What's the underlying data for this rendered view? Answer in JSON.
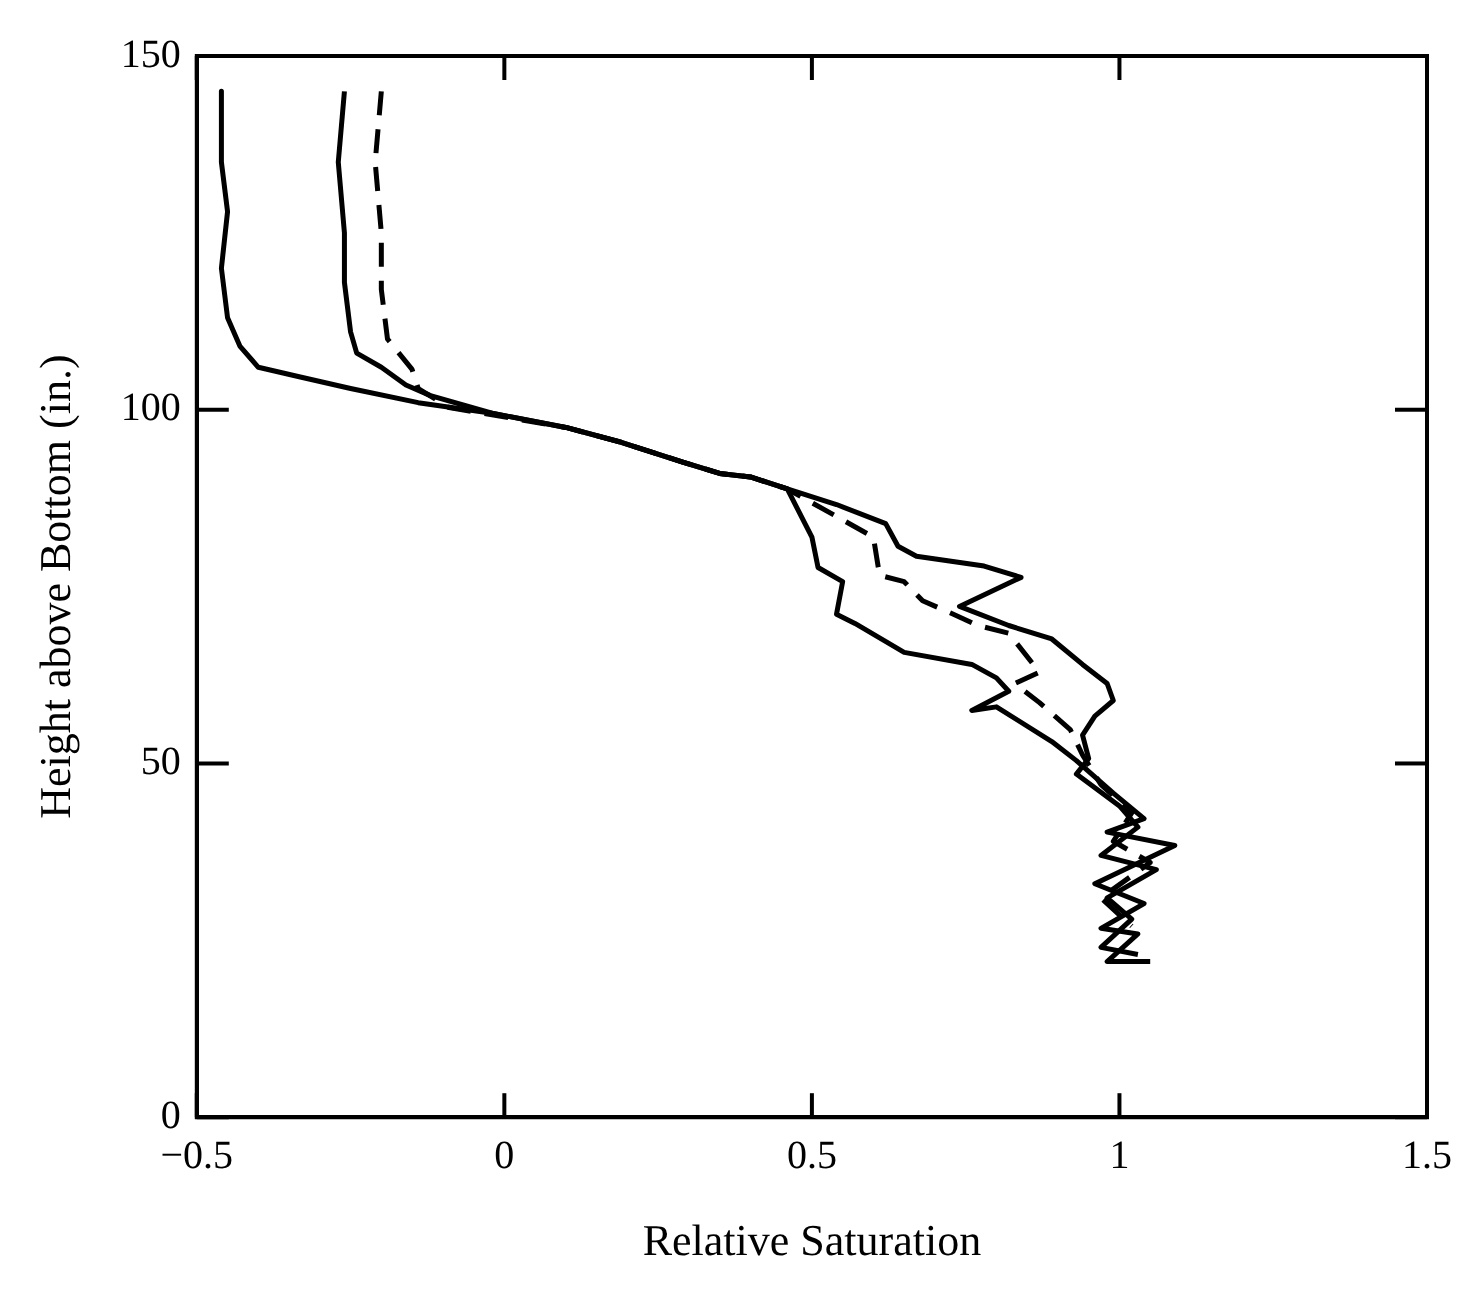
{
  "chart_data": {
    "type": "line",
    "xlabel": "Relative Saturation",
    "ylabel": "Height above Bottom (in.)",
    "xlim": [
      -0.5,
      1.5
    ],
    "xticks": [
      -0.5,
      0,
      0.5,
      1,
      1.5
    ],
    "ylim": [
      0,
      150
    ],
    "yticks": [
      0,
      50,
      100,
      150
    ],
    "legend": false,
    "marker": "none",
    "series": [
      {
        "color": "#000000",
        "line_style": "solid",
        "x": [
          -0.46,
          -0.46,
          -0.45,
          -0.46,
          -0.45,
          -0.43,
          -0.4,
          -0.33,
          -0.25,
          -0.14,
          -0.02,
          0.1,
          0.19,
          0.29,
          0.35,
          0.4,
          0.46,
          0.5,
          0.51,
          0.55,
          0.54,
          0.57,
          0.65,
          0.76,
          0.8,
          0.82,
          0.76,
          0.8,
          0.89,
          0.93,
          0.99,
          1.04,
          0.98,
          1.09,
          0.96,
          1.04,
          0.97,
          1.03,
          0.98,
          1.05
        ],
        "values": [
          145,
          135,
          128,
          120,
          113,
          109,
          106,
          104.6,
          103,
          101,
          99.5,
          97.5,
          95.4,
          92.6,
          91,
          90.5,
          88.8,
          82,
          77.7,
          75.7,
          71.1,
          69.8,
          65.7,
          64,
          62.1,
          60.2,
          57.5,
          58,
          53.1,
          50.4,
          45.8,
          42.2,
          40.3,
          38.4,
          33,
          30.2,
          26.7,
          25.9,
          22,
          22
        ]
      },
      {
        "color": "#000000",
        "line_style": "solid",
        "x": [
          -0.26,
          -0.27,
          -0.26,
          -0.26,
          -0.25,
          -0.24,
          -0.2,
          -0.16,
          -0.12,
          -0.02,
          0.1,
          0.19,
          0.29,
          0.35,
          0.4,
          0.46,
          0.54,
          0.62,
          0.64,
          0.67,
          0.78,
          0.84,
          0.74,
          0.82,
          0.89,
          0.94,
          0.98,
          0.99,
          0.96,
          0.94,
          0.95,
          0.93,
          1.0,
          1.03,
          0.97,
          1.06,
          0.98,
          1.02,
          0.97,
          1.03
        ],
        "values": [
          145,
          135,
          125,
          118,
          111,
          108,
          106,
          103.5,
          102,
          99.5,
          97.5,
          95.4,
          92.6,
          91,
          90.5,
          88.8,
          86.6,
          83.9,
          80.7,
          79.3,
          77.9,
          76.3,
          72.2,
          69.5,
          67.6,
          64,
          61.3,
          58.9,
          56.7,
          54,
          50.7,
          48.5,
          44,
          41,
          37,
          35,
          31,
          28,
          24,
          23
        ]
      },
      {
        "color": "#000000",
        "line_style": "dashed",
        "x": [
          -0.2,
          -0.21,
          -0.2,
          -0.2,
          -0.19,
          -0.15,
          -0.14,
          -0.09,
          0.1,
          0.19,
          0.29,
          0.35,
          0.4,
          0.46,
          0.6,
          0.61,
          0.65,
          0.68,
          0.73,
          0.77,
          0.82,
          0.87,
          0.83,
          0.87,
          0.92,
          0.94,
          0.97,
          1.02,
          0.99,
          1.05,
          0.97,
          1.02
        ],
        "values": [
          145,
          135,
          125,
          117,
          110,
          105.7,
          103,
          100.3,
          97.5,
          95.4,
          92.6,
          91,
          90.5,
          88.8,
          82,
          76.6,
          75.7,
          73,
          71.1,
          69.5,
          68.4,
          62.9,
          61.3,
          58.6,
          54.8,
          51.2,
          47,
          43,
          39,
          36,
          31,
          27
        ]
      }
    ]
  }
}
